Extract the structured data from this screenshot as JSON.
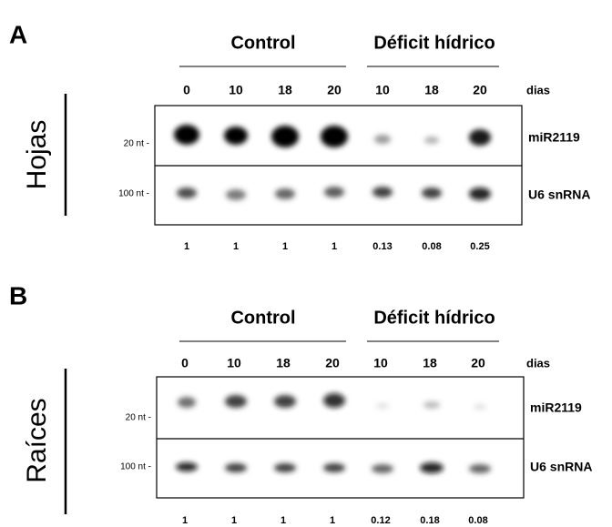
{
  "panels": [
    {
      "letter": "A",
      "tissue": "Hojas",
      "groups": [
        "Control",
        "Déficit hídrico"
      ],
      "days": [
        0,
        10,
        18,
        20,
        10,
        18,
        20
      ],
      "days_label": "dias",
      "markers": [
        "20 nt -",
        "100 nt -"
      ],
      "probes": [
        "miR2119",
        "U6 snRNA"
      ],
      "quantification": [
        1,
        1,
        1,
        1,
        0.13,
        0.08,
        0.25
      ]
    },
    {
      "letter": "B",
      "tissue": "Raíces",
      "groups": [
        "Control",
        "Déficit hídrico"
      ],
      "days": [
        0,
        10,
        18,
        20,
        10,
        18,
        20
      ],
      "days_label": "dias",
      "markers": [
        "20 nt -",
        "100 nt -"
      ],
      "probes": [
        "miR2119",
        "U6 snRNA"
      ],
      "quantification": [
        1,
        1,
        1,
        1,
        0.12,
        0.18,
        0.08
      ]
    }
  ]
}
